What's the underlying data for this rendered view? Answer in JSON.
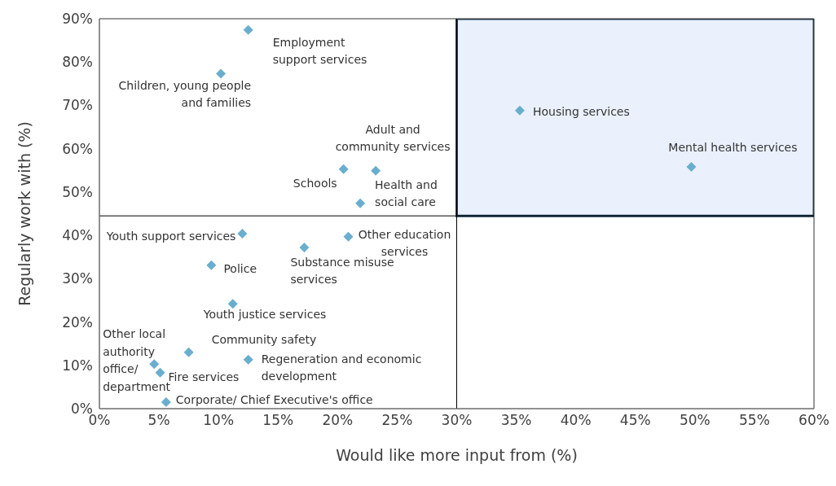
{
  "chart_data": {
    "type": "scatter",
    "xlabel": "Would like more input from (%)",
    "ylabel": "Regularly work with (%)",
    "series": [
      {
        "color": "#6aaecf",
        "x": [
          12.5,
          10.2,
          35.3,
          49.7,
          20.5,
          23.2,
          21.9,
          12.0,
          20.9,
          17.2,
          9.4,
          11.2,
          7.5,
          4.6,
          5.1,
          12.5,
          5.6
        ],
        "values": [
          87.4,
          77.3,
          68.8,
          55.8,
          55.3,
          54.9,
          47.4,
          40.4,
          39.7,
          37.2,
          33.1,
          24.2,
          13.0,
          10.3,
          8.3,
          11.3,
          1.5
        ]
      }
    ],
    "marker": "diamond",
    "xlim": [
      0,
      60
    ],
    "xticks": [
      {
        "value": 0,
        "label": "0%"
      },
      {
        "value": 5,
        "label": "5%"
      },
      {
        "value": 10,
        "label": "10%"
      },
      {
        "value": 15,
        "label": "15%"
      },
      {
        "value": 20,
        "label": "20%"
      },
      {
        "value": 25,
        "label": "25%"
      },
      {
        "value": 30,
        "label": "30%"
      },
      {
        "value": 35,
        "label": "35%"
      },
      {
        "value": 40,
        "label": "40%"
      },
      {
        "value": 45,
        "label": "45%"
      },
      {
        "value": 50,
        "label": "50%"
      },
      {
        "value": 55,
        "label": "55%"
      },
      {
        "value": 60,
        "label": "60%"
      }
    ],
    "ylim": [
      0,
      90
    ],
    "yticks": [
      {
        "value": 0,
        "label": "0%"
      },
      {
        "value": 10,
        "label": "10%"
      },
      {
        "value": 20,
        "label": "20%"
      },
      {
        "value": 30,
        "label": "30%"
      },
      {
        "value": 40,
        "label": "40%"
      },
      {
        "value": 50,
        "label": "50%"
      },
      {
        "value": 60,
        "label": "60%"
      },
      {
        "value": 70,
        "label": "70%"
      },
      {
        "value": 80,
        "label": "80%"
      },
      {
        "value": 90,
        "label": "90%"
      }
    ],
    "ref_lines": [
      {
        "axis": "x",
        "value": 30,
        "color": "#000000"
      },
      {
        "axis": "y",
        "value": 44.5,
        "color": "#000000"
      }
    ],
    "bands": [
      {
        "axis": "x",
        "from": 30,
        "to": 60,
        "color": "#eaf1fd"
      }
    ],
    "annotations": [
      {
        "text": "Employment\nsupport services",
        "x": 12.5,
        "y": 87.4
      },
      {
        "text": "Children, young people\nand families",
        "x": 10.2,
        "y": 77.3
      },
      {
        "text": "Housing services",
        "x": 35.3,
        "y": 68.8
      },
      {
        "text": "Mental health services",
        "x": 49.7,
        "y": 55.8
      },
      {
        "text": "Schools",
        "x": 20.5,
        "y": 55.3
      },
      {
        "text": "Adult and\ncommunity services",
        "x": 23.2,
        "y": 54.9
      },
      {
        "text": "Health and\nsocial care",
        "x": 21.9,
        "y": 47.4
      },
      {
        "text": "Youth support services",
        "x": 12.0,
        "y": 40.4
      },
      {
        "text": "Other education\nservices",
        "x": 20.9,
        "y": 39.7
      },
      {
        "text": "Substance misuse\nservices",
        "x": 17.2,
        "y": 37.2
      },
      {
        "text": "Police",
        "x": 9.4,
        "y": 33.1
      },
      {
        "text": "Youth justice services",
        "x": 11.2,
        "y": 24.2
      },
      {
        "text": "Community safety",
        "x": 7.5,
        "y": 13.0
      },
      {
        "text": "Other local\nauthority\noffice/\ndepartment",
        "x": 4.6,
        "y": 10.3
      },
      {
        "text": "Fire services",
        "x": 5.1,
        "y": 8.3
      },
      {
        "text": "Regeneration and economic\ndevelopment",
        "x": 12.5,
        "y": 11.3
      },
      {
        "text": "Corporate/ Chief Executive's office",
        "x": 5.6,
        "y": 1.5
      }
    ]
  }
}
